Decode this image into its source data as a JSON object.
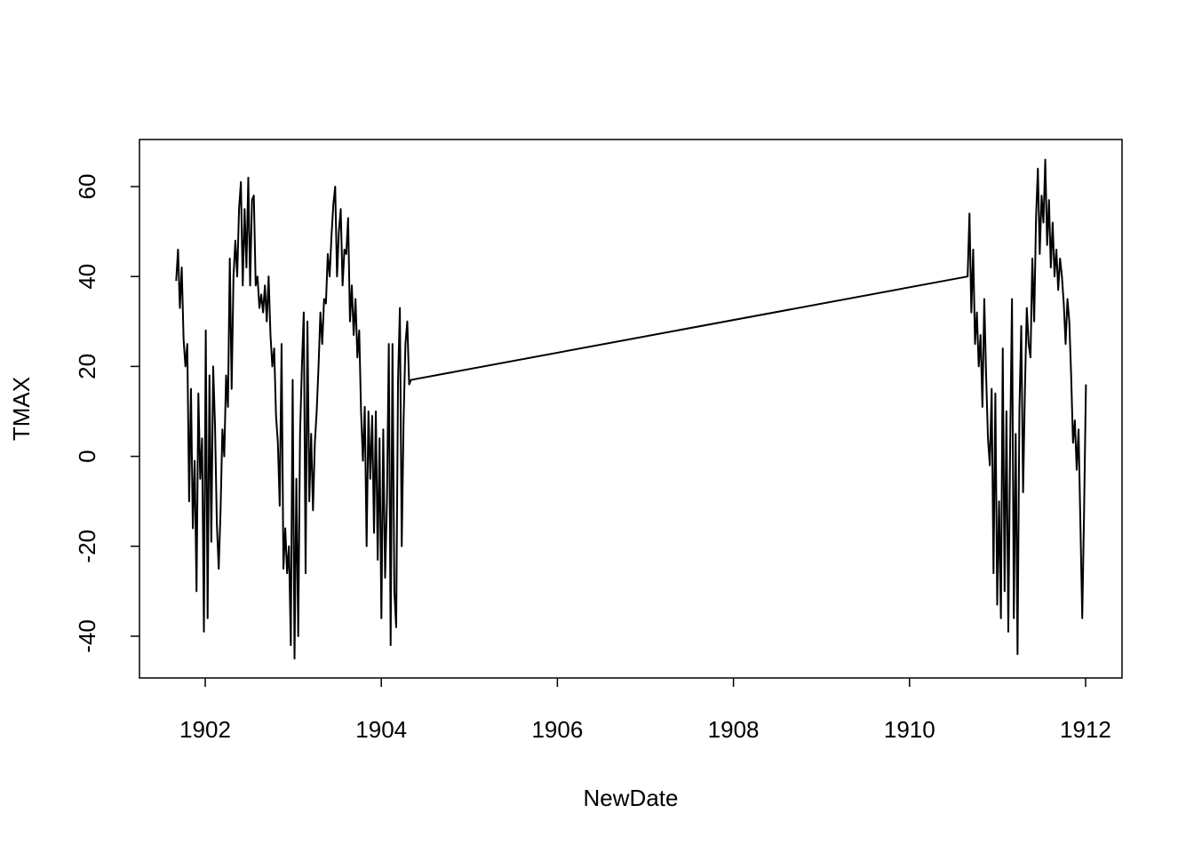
{
  "chart_data": {
    "type": "line",
    "xlabel": "NewDate",
    "ylabel": "TMAX",
    "x": [
      1901.67,
      1901.691,
      1901.712,
      1901.733,
      1901.754,
      1901.775,
      1901.796,
      1901.817,
      1901.838,
      1901.859,
      1901.88,
      1901.901,
      1901.922,
      1901.943,
      1901.964,
      1901.985,
      1902.006,
      1902.027,
      1902.048,
      1902.069,
      1902.09,
      1902.111,
      1902.132,
      1902.153,
      1902.174,
      1902.195,
      1902.216,
      1902.237,
      1902.258,
      1902.279,
      1902.3,
      1902.321,
      1902.342,
      1902.363,
      1902.384,
      1902.405,
      1902.426,
      1902.447,
      1902.468,
      1902.489,
      1902.51,
      1902.531,
      1902.552,
      1902.573,
      1902.594,
      1902.615,
      1902.636,
      1902.657,
      1902.678,
      1902.699,
      1902.72,
      1902.741,
      1902.762,
      1902.783,
      1902.804,
      1902.825,
      1902.846,
      1902.867,
      1902.888,
      1902.909,
      1902.93,
      1902.951,
      1902.972,
      1902.993,
      1903.014,
      1903.035,
      1903.056,
      1903.077,
      1903.098,
      1903.119,
      1903.14,
      1903.161,
      1903.182,
      1903.203,
      1903.224,
      1903.245,
      1903.266,
      1903.287,
      1903.308,
      1903.329,
      1903.35,
      1903.371,
      1903.392,
      1903.413,
      1903.434,
      1903.455,
      1903.476,
      1903.497,
      1903.518,
      1903.539,
      1903.56,
      1903.581,
      1903.602,
      1903.623,
      1903.644,
      1903.665,
      1903.686,
      1903.707,
      1903.728,
      1903.749,
      1903.77,
      1903.791,
      1903.812,
      1903.833,
      1903.854,
      1903.875,
      1903.896,
      1903.917,
      1903.938,
      1903.959,
      1903.98,
      1904.001,
      1904.022,
      1904.043,
      1904.064,
      1904.085,
      1904.106,
      1904.127,
      1904.148,
      1904.169,
      1904.19,
      1904.211,
      1904.232,
      1904.253,
      1904.274,
      1904.295,
      1904.316,
      1904.337,
      1910.66,
      1910.681,
      1910.702,
      1910.723,
      1910.744,
      1910.765,
      1910.786,
      1910.807,
      1910.828,
      1910.849,
      1910.87,
      1910.891,
      1910.912,
      1910.933,
      1910.954,
      1910.975,
      1910.996,
      1911.017,
      1911.038,
      1911.059,
      1911.08,
      1911.101,
      1911.122,
      1911.143,
      1911.164,
      1911.185,
      1911.206,
      1911.227,
      1911.248,
      1911.269,
      1911.29,
      1911.311,
      1911.332,
      1911.353,
      1911.374,
      1911.395,
      1911.416,
      1911.437,
      1911.458,
      1911.479,
      1911.5,
      1911.521,
      1911.542,
      1911.563,
      1911.584,
      1911.605,
      1911.626,
      1911.647,
      1911.668,
      1911.689,
      1911.71,
      1911.731,
      1911.752,
      1911.773,
      1911.794,
      1911.815,
      1911.836,
      1911.857,
      1911.878,
      1911.899,
      1911.92,
      1911.941,
      1911.962,
      1911.983,
      1912.004
    ],
    "values": [
      39,
      46,
      33,
      42,
      26,
      20,
      25,
      -10,
      15,
      -16,
      -1,
      -30,
      14,
      -5,
      4,
      -39,
      28,
      -36,
      18,
      -19,
      20,
      7,
      -15,
      -25,
      -12,
      6,
      0,
      18,
      11,
      44,
      15,
      40,
      48,
      40,
      55,
      61,
      38,
      55,
      42,
      62,
      38,
      57,
      58,
      38,
      40,
      33,
      36,
      32,
      38,
      30,
      40,
      27,
      20,
      24,
      9,
      3,
      -11,
      25,
      -25,
      -16,
      -26,
      -20,
      -42,
      17,
      -45,
      -5,
      -40,
      5,
      20,
      32,
      -26,
      30,
      -10,
      5,
      -12,
      3,
      10,
      20,
      32,
      25,
      35,
      34,
      45,
      40,
      49,
      56,
      60,
      40,
      50,
      55,
      38,
      46,
      45,
      53,
      30,
      38,
      27,
      35,
      22,
      28,
      10,
      -1,
      11,
      -20,
      10,
      -5,
      9,
      -17,
      10,
      -23,
      4,
      -36,
      6,
      -27,
      -10,
      25,
      -42,
      25,
      -30,
      -38,
      17,
      33,
      -20,
      8,
      25,
      30,
      16,
      17,
      40,
      54,
      32,
      46,
      25,
      32,
      20,
      27,
      11,
      35,
      18,
      4,
      -2,
      15,
      -26,
      14,
      -33,
      -10,
      -36,
      24,
      -30,
      10,
      -39,
      2,
      35,
      -36,
      5,
      -44,
      10,
      29,
      -8,
      15,
      33,
      25,
      22,
      44,
      30,
      53,
      64,
      45,
      58,
      52,
      66,
      47,
      57,
      42,
      52,
      40,
      46,
      37,
      44,
      40,
      34,
      25,
      35,
      30,
      18,
      3,
      8,
      -3,
      6,
      -15,
      -36,
      -12,
      16
    ],
    "color": "#000000",
    "xlim": [
      1901.253,
      1912.414
    ],
    "xticks": [
      1902,
      1904,
      1906,
      1908,
      1910,
      1912
    ],
    "ylim": [
      -49.29,
      70.47
    ],
    "yticks": [
      -40,
      -20,
      0,
      20,
      40,
      60
    ]
  }
}
